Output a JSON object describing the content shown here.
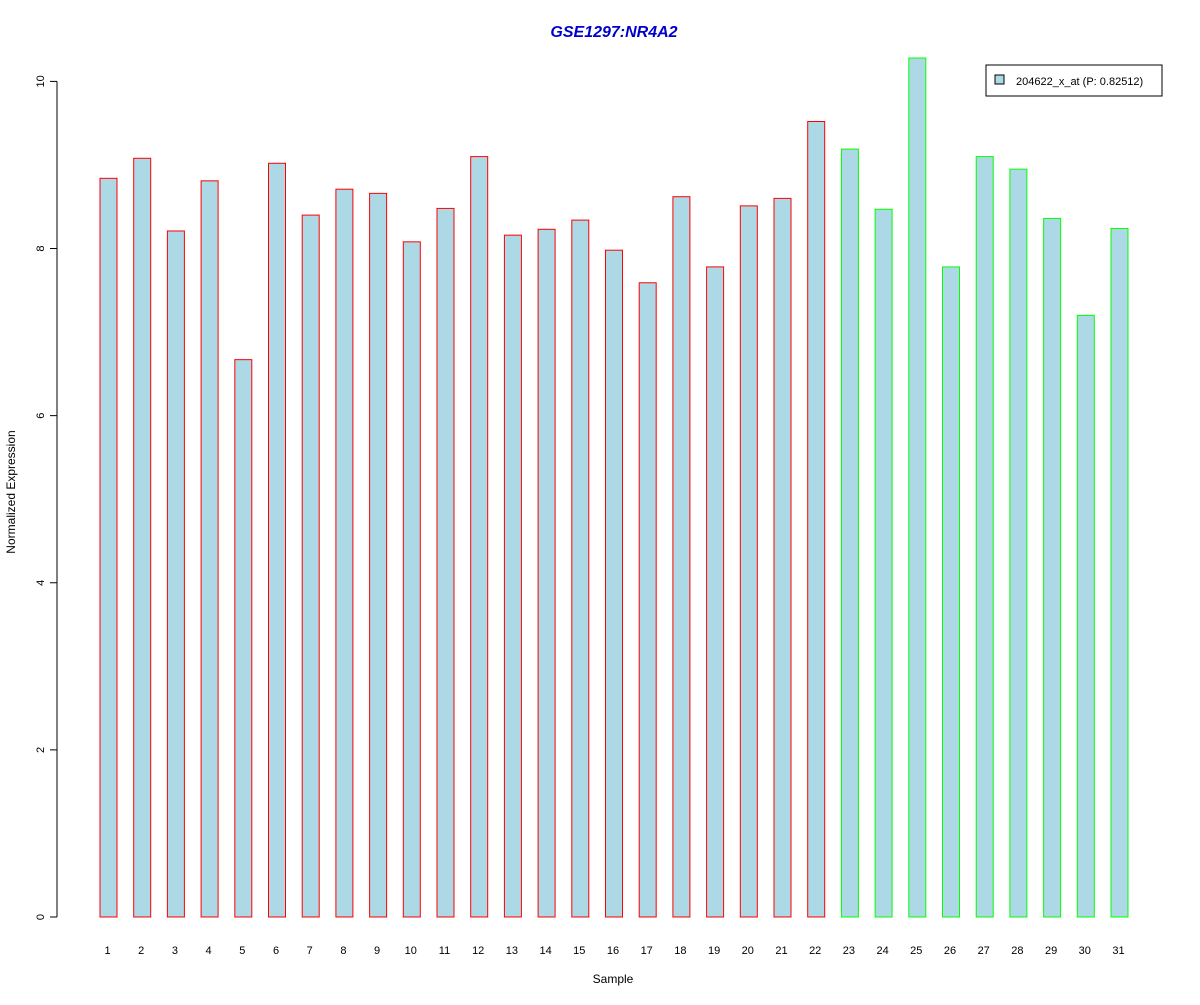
{
  "chart_data": {
    "type": "bar",
    "title": "GSE1297:NR4A2",
    "xlabel": "Sample",
    "ylabel": "Normalized Expression",
    "categories": [
      "1",
      "2",
      "3",
      "4",
      "5",
      "6",
      "7",
      "8",
      "9",
      "10",
      "11",
      "12",
      "13",
      "14",
      "15",
      "16",
      "17",
      "18",
      "19",
      "20",
      "21",
      "22",
      "23",
      "24",
      "25",
      "26",
      "27",
      "28",
      "29",
      "30",
      "31"
    ],
    "values": [
      8.84,
      9.08,
      8.21,
      8.81,
      6.67,
      9.02,
      8.4,
      8.71,
      8.66,
      8.08,
      8.48,
      9.1,
      8.16,
      8.23,
      8.34,
      7.98,
      7.59,
      8.62,
      7.78,
      8.51,
      8.6,
      9.52,
      9.19,
      8.47,
      10.28,
      7.78,
      9.1,
      8.95,
      8.36,
      7.2,
      8.24
    ],
    "groups": [
      "red",
      "red",
      "red",
      "red",
      "red",
      "red",
      "red",
      "red",
      "red",
      "red",
      "red",
      "red",
      "red",
      "red",
      "red",
      "red",
      "red",
      "red",
      "red",
      "red",
      "red",
      "red",
      "green",
      "green",
      "green",
      "green",
      "green",
      "green",
      "green",
      "green",
      "green"
    ],
    "ylim": [
      0,
      10.28
    ],
    "yticks": [
      0,
      2,
      4,
      6,
      8,
      10
    ],
    "grid": false,
    "legend": {
      "position": "top-right",
      "entries": [
        {
          "label": "204622_x_at (P: 0.82512)"
        }
      ]
    },
    "colors": {
      "bar_fill": "#add8e6",
      "group_red": "#ff0000",
      "group_green": "#00ff00",
      "title": "#0000cc",
      "axis": "#000000"
    }
  }
}
